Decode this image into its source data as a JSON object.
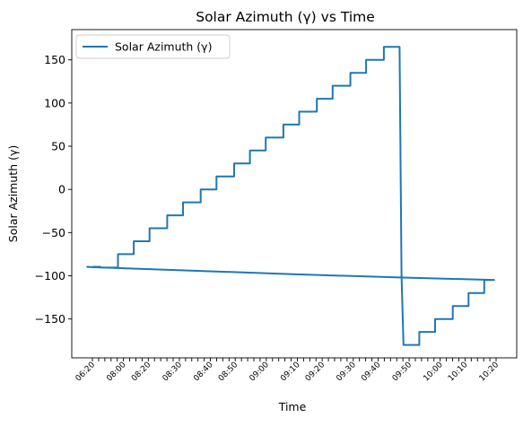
{
  "chart_data": {
    "type": "line",
    "title": "Solar Azimuth (γ) vs Time",
    "xlabel": "Time",
    "ylabel": "Solar Azimuth (γ)",
    "ylim": [
      -195,
      185
    ],
    "yticks": [
      -150,
      -100,
      -50,
      0,
      50,
      100,
      150
    ],
    "ytick_labels": [
      "−150",
      "−100",
      "−50",
      "0",
      "50",
      "100",
      "150"
    ],
    "xtick_count": 66,
    "xtick_labels_visible": [
      "06:20",
      "08:00",
      "08:20",
      "08:30",
      "08:40",
      "08:50",
      "09:00",
      "09:10",
      "09:20",
      "09:30",
      "09:40",
      "09:50",
      "10:00",
      "10:10",
      "10:20"
    ],
    "legend": {
      "placement": "top-left",
      "entries": [
        "Solar Azimuth (γ)"
      ]
    },
    "grid": false,
    "series": [
      {
        "name": "Solar Azimuth (γ)",
        "color": "#1f77b4",
        "points": [
          [
            0,
            -89.6
          ],
          [
            4,
            -89.6
          ],
          [
            4,
            -90.5
          ],
          [
            13,
            -90.5
          ],
          [
            13,
            -75
          ],
          [
            21,
            -75
          ],
          [
            21,
            -60
          ],
          [
            29,
            -60
          ],
          [
            29,
            -45
          ],
          [
            38,
            -45
          ],
          [
            38,
            -30
          ],
          [
            46,
            -30
          ],
          [
            46,
            -15
          ],
          [
            55,
            -15
          ],
          [
            55,
            0
          ],
          [
            63,
            0
          ],
          [
            63,
            15
          ],
          [
            72,
            15
          ],
          [
            72,
            30
          ],
          [
            80,
            30
          ],
          [
            80,
            45
          ],
          [
            88,
            45
          ],
          [
            88,
            60
          ],
          [
            97,
            60
          ],
          [
            97,
            75
          ],
          [
            105,
            75
          ],
          [
            105,
            90
          ],
          [
            114,
            90
          ],
          [
            114,
            105
          ],
          [
            122,
            105
          ],
          [
            122,
            120
          ],
          [
            131,
            120
          ],
          [
            131,
            135
          ],
          [
            139,
            135
          ],
          [
            139,
            150
          ],
          [
            148,
            150
          ],
          [
            148,
            165
          ],
          [
            156,
            165
          ],
          [
            156,
            165
          ],
          [
            157,
            -100
          ],
          [
            158,
            -180
          ],
          [
            166,
            -180
          ],
          [
            166,
            -165
          ],
          [
            174,
            -165
          ],
          [
            174,
            -150
          ],
          [
            183,
            -150
          ],
          [
            183,
            -135
          ],
          [
            191,
            -135
          ],
          [
            191,
            -120
          ],
          [
            199,
            -120
          ],
          [
            199,
            -105
          ],
          [
            204,
            -105
          ],
          [
            204,
            -104.8
          ],
          [
            199,
            -104.6
          ],
          [
            156,
            -102
          ],
          [
            100,
            -98
          ],
          [
            50,
            -94
          ],
          [
            0,
            -90
          ],
          [
            -3,
            -89.6
          ]
        ]
      }
    ]
  }
}
